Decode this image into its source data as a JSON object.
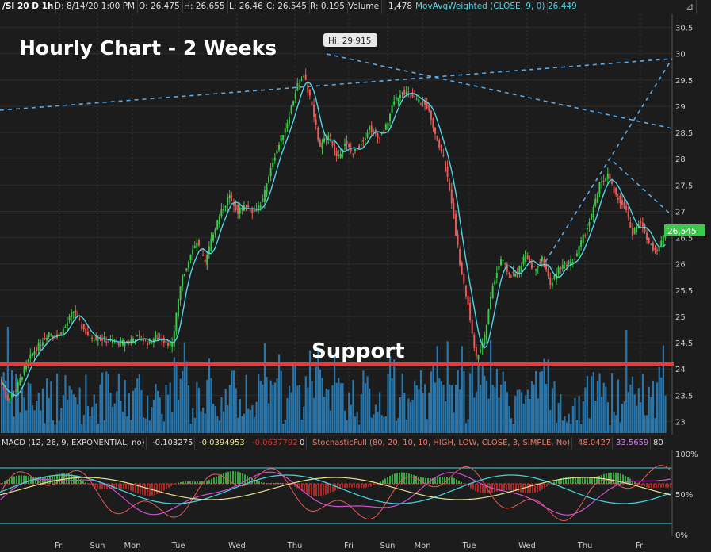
{
  "header": {
    "ticker": "/SI 20 D 1h",
    "date": "D: 8/14/20 1:00 PM",
    "open": "O: 26.475",
    "high": "H: 26.655",
    "low": "L: 26.46",
    "close": "C: 26.545",
    "range": "R: 0.195",
    "volume_label": "Volume",
    "volume_value": "1,478",
    "ma_label": "MovAvgWeighted (CLOSE, 9, 0)",
    "ma_value": "26.449"
  },
  "annotations": {
    "title": "Hourly Chart - 2 Weeks",
    "support": "Support",
    "hi_label": "Hi: 29.915",
    "last_price": "26.545"
  },
  "lower": {
    "macd_label": "MACD (12, 26, 9, EXPONENTIAL, no)",
    "macd_value": "-0.103275",
    "macd_avg": "-0.0394953",
    "macd_diff": "-0.0637792",
    "macd_zero": "0",
    "stoch_label": "StochasticFull (80, 20, 10, 10, HIGH, LOW, CLOSE, 3, SIMPLE, No)",
    "stoch_k": "48.0427",
    "stoch_d": "33.5659",
    "stoch_ob": "80",
    "pct_labels": [
      "100%",
      "50%",
      "0%"
    ]
  },
  "colors": {
    "up": "#3cc84a",
    "down": "#e85a5a",
    "ma": "#4fd3e0",
    "volume": "#2a86c4",
    "support": "#e83a3a",
    "trend": "#5aa9e6"
  },
  "chart_data": {
    "type": "candlestick",
    "title": "Hourly Chart - 2 Weeks",
    "y_ticks": [
      23,
      23.5,
      24,
      24.5,
      25,
      25.5,
      26,
      26.5,
      27,
      27.5,
      28,
      28.5,
      29,
      29.5,
      30,
      30.5
    ],
    "ylim": [
      22.75,
      30.75
    ],
    "x_labels": [
      "Fri",
      "Sun",
      "Mon",
      "Tue",
      "Wed",
      "Thu",
      "Fri",
      "Sun",
      "Mon",
      "Tue",
      "Wed",
      "Thu",
      "Fri"
    ],
    "support_level": 24,
    "high": 29.915,
    "last": 26.545,
    "close_path": [
      23.8,
      23.4,
      23.6,
      24.0,
      24.3,
      24.5,
      24.7,
      24.6,
      24.8,
      25.1,
      24.8,
      24.6,
      24.6,
      24.55,
      24.5,
      24.5,
      24.55,
      24.6,
      24.5,
      24.6,
      24.55,
      24.45,
      25.6,
      26.1,
      26.4,
      26.0,
      26.6,
      27.0,
      27.3,
      27.0,
      27.1,
      27.0,
      27.2,
      27.8,
      28.3,
      28.7,
      29.3,
      29.6,
      29.0,
      28.2,
      28.5,
      28.0,
      28.3,
      28.1,
      28.3,
      28.6,
      28.4,
      28.6,
      29.1,
      29.3,
      29.2,
      29.1,
      29.0,
      28.5,
      28.0,
      27.2,
      26.0,
      25.2,
      24.2,
      24.6,
      25.6,
      26.1,
      25.8,
      25.8,
      26.2,
      25.9,
      26.1,
      25.6,
      25.9,
      26.0,
      26.1,
      26.5,
      26.9,
      27.5,
      27.7,
      27.3,
      27.1,
      26.6,
      26.8,
      26.4,
      26.2,
      26.6
    ]
  }
}
